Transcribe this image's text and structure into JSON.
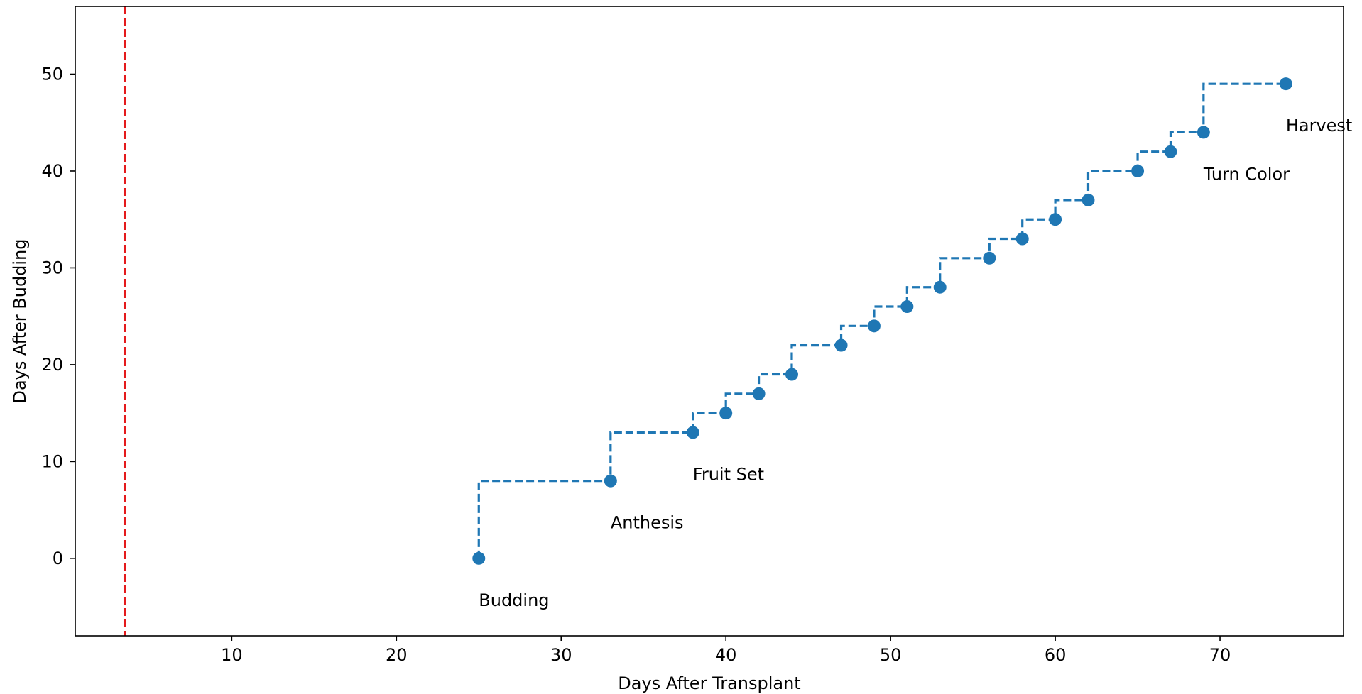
{
  "colors": {
    "series": "#1f77b4",
    "reference_line": "#e41a1c",
    "axis": "#000000",
    "background": "#ffffff"
  },
  "chart_data": {
    "type": "line",
    "title": "",
    "xlabel": "Days After Transplant",
    "ylabel": "Days After Budding",
    "xlim": [
      0.5,
      77.5
    ],
    "ylim": [
      -8,
      57
    ],
    "xticks": [
      10,
      20,
      30,
      40,
      50,
      60,
      70
    ],
    "yticks": [
      0,
      10,
      20,
      30,
      40,
      50
    ],
    "grid": false,
    "legend": "none",
    "step_style": "post, dashed",
    "reference_line": {
      "orientation": "vertical",
      "x": 3.5,
      "style": "dashed"
    },
    "x": [
      25,
      33,
      38,
      40,
      42,
      44,
      47,
      49,
      51,
      53,
      56,
      58,
      60,
      62,
      65,
      67,
      69,
      74
    ],
    "y": [
      0,
      8,
      13,
      15,
      17,
      19,
      22,
      24,
      26,
      28,
      31,
      33,
      35,
      37,
      40,
      42,
      44,
      49
    ],
    "annotations": [
      {
        "text": "Budding",
        "x": 25,
        "y": 0
      },
      {
        "text": "Anthesis",
        "x": 33,
        "y": 8
      },
      {
        "text": "Fruit Set",
        "x": 38,
        "y": 13
      },
      {
        "text": "Turn Color",
        "x": 69,
        "y": 44
      },
      {
        "text": "Harvest",
        "x": 74,
        "y": 49
      }
    ]
  }
}
